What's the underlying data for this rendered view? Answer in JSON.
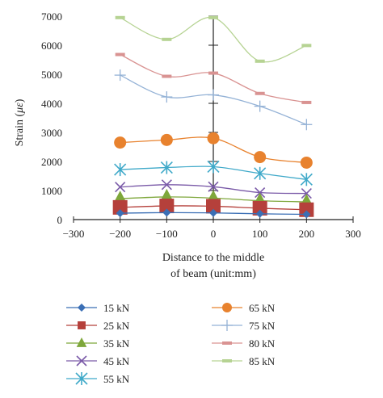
{
  "chart_data": {
    "type": "line",
    "ylabel_main": "Strain (",
    "ylabel_unit": "με",
    "ylabel_end": ")",
    "xlabel_line1": "Distance to the middle",
    "xlabel_line2": "of beam (unit:mm)",
    "xlim": [
      -300,
      300
    ],
    "ylim": [
      0,
      7000
    ],
    "xticks": [
      -300,
      -200,
      -100,
      0,
      100,
      200,
      300
    ],
    "yticks": [
      0,
      1000,
      2000,
      3000,
      4000,
      5000,
      6000,
      7000
    ],
    "x": [
      -200,
      -100,
      0,
      100,
      200
    ],
    "series": [
      {
        "name": "15 kN",
        "color": "#3b6fb5",
        "marker": "diamond",
        "values": [
          220,
          240,
          230,
          200,
          180
        ]
      },
      {
        "name": "25 kN",
        "color": "#b5403b",
        "marker": "square",
        "values": [
          420,
          470,
          460,
          390,
          340
        ]
      },
      {
        "name": "35 kN",
        "color": "#7ea73b",
        "marker": "triangle",
        "values": [
          720,
          780,
          740,
          650,
          610
        ]
      },
      {
        "name": "45 kN",
        "color": "#7a5aa8",
        "marker": "x",
        "values": [
          1120,
          1200,
          1130,
          930,
          900
        ]
      },
      {
        "name": "55 kN",
        "color": "#3fa9c9",
        "marker": "star",
        "values": [
          1720,
          1790,
          1820,
          1590,
          1380
        ]
      },
      {
        "name": "65 kN",
        "color": "#e8822e",
        "marker": "circle",
        "values": [
          2650,
          2740,
          2800,
          2150,
          1960
        ]
      },
      {
        "name": "75 kN",
        "color": "#94b2d6",
        "marker": "plus",
        "values": [
          4970,
          4220,
          4290,
          3900,
          3270
        ]
      },
      {
        "name": "80 kN",
        "color": "#d99392",
        "marker": "dash",
        "values": [
          5680,
          4930,
          5040,
          4340,
          4030
        ]
      },
      {
        "name": "85 kN",
        "color": "#b6d393",
        "marker": "dash",
        "values": [
          6950,
          6200,
          6950,
          5450,
          5990
        ]
      }
    ]
  }
}
